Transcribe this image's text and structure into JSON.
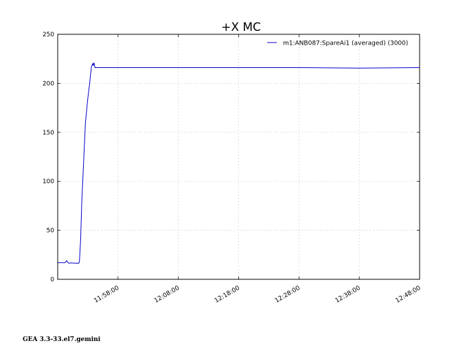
{
  "chart_data": {
    "type": "line",
    "title": "+X MC",
    "xlabel": "",
    "ylabel": "",
    "ylim": [
      0,
      250
    ],
    "yticks": [
      0,
      50,
      100,
      150,
      200,
      250
    ],
    "xlim_minutes": [
      0,
      60
    ],
    "xticks": [
      {
        "minute": 10,
        "label": "11:58:00"
      },
      {
        "minute": 20,
        "label": "12:08:00"
      },
      {
        "minute": 30,
        "label": "12:18:00"
      },
      {
        "minute": 40,
        "label": "12:28:00"
      },
      {
        "minute": 50,
        "label": "12:38:00"
      },
      {
        "minute": 60,
        "label": "12:48:00"
      }
    ],
    "grid": true,
    "legend_position": "top-right",
    "series": [
      {
        "name": "m1:ANB087:SpareAi1 (averaged) (3000)",
        "color": "#0000cc",
        "x": [
          0,
          1.2,
          1.5,
          1.7,
          1.9,
          2.2,
          3.0,
          3.5,
          3.6,
          3.8,
          4.0,
          4.3,
          4.6,
          5.0,
          5.3,
          5.5,
          5.6,
          5.8,
          5.9,
          6.0,
          6.2,
          6.8,
          10,
          20,
          30,
          40,
          50,
          60
        ],
        "values": [
          17,
          17,
          19,
          17,
          16.5,
          16.8,
          16.5,
          16.5,
          18,
          40,
          80,
          120,
          160,
          185,
          200,
          212,
          217,
          220,
          218,
          221,
          216,
          216,
          216,
          216,
          216,
          216,
          215.5,
          216
        ]
      }
    ]
  },
  "footer_text": "GEA 3.3-33.el7.gemini"
}
